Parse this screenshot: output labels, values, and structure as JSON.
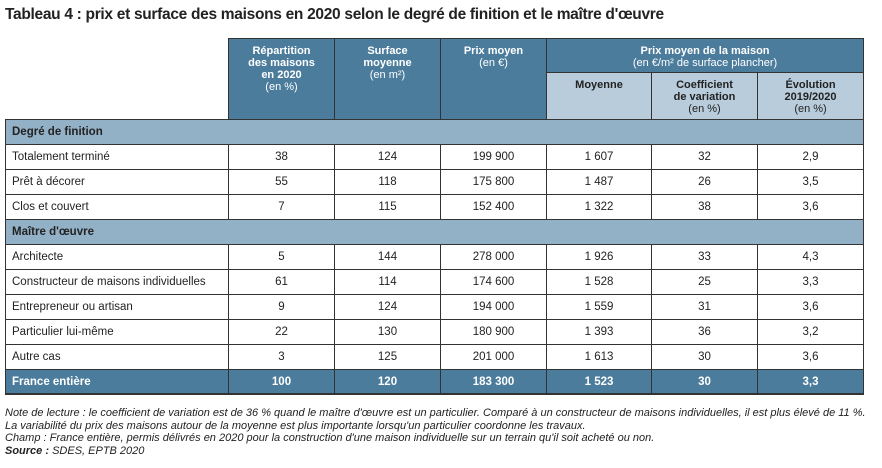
{
  "title": "Tableau 4 : prix et surface des maisons en 2020 selon le degré de finition et le maître d'œuvre",
  "colors": {
    "header": "#4b7c9c",
    "section": "#93b1c6",
    "subheader": "#b8ccdb"
  },
  "headers": {
    "col1": {
      "title": "Répartition des maisons en 2020",
      "unit": "(en %)"
    },
    "col2": {
      "title": "Surface moyenne",
      "unit": "(en m²)"
    },
    "col3": {
      "title": "Prix moyen",
      "unit": "(en €)"
    },
    "group": {
      "title": "Prix moyen de la maison",
      "unit": "(en €/m² de surface plancher)"
    },
    "col4": {
      "title": "Moyenne",
      "unit": ""
    },
    "col5": {
      "title": "Coefficient de variation",
      "unit": "(en %)"
    },
    "col6": {
      "title": "Évolution 2019/2020",
      "unit": "(en %)"
    }
  },
  "sections": [
    {
      "label": "Degré de finition",
      "rows": [
        [
          "Totalement terminé",
          "38",
          "124",
          "199 900",
          "1 607",
          "32",
          "2,9"
        ],
        [
          "Prêt à décorer",
          "55",
          "118",
          "175 800",
          "1 487",
          "26",
          "3,5"
        ],
        [
          "Clos et couvert",
          "7",
          "115",
          "152 400",
          "1 322",
          "38",
          "3,6"
        ]
      ]
    },
    {
      "label": "Maître d'œuvre",
      "rows": [
        [
          "Architecte",
          "5",
          "144",
          "278 000",
          "1 926",
          "33",
          "4,3"
        ],
        [
          "Constructeur de maisons individuelles",
          "61",
          "114",
          "174 600",
          "1 528",
          "25",
          "3,3"
        ],
        [
          "Entrepreneur ou artisan",
          "9",
          "124",
          "194 000",
          "1 559",
          "31",
          "3,6"
        ],
        [
          "Particulier lui-même",
          "22",
          "130",
          "180 900",
          "1 393",
          "36",
          "3,2"
        ],
        [
          "Autre cas",
          "3",
          "125",
          "201 000",
          "1 613",
          "30",
          "3,6"
        ]
      ]
    }
  ],
  "total": [
    "France entière",
    "100",
    "120",
    "183 300",
    "1 523",
    "30",
    "3,3"
  ],
  "notes": {
    "reading": "Note de lecture : le coefficient de variation est de 36 % quand le maître d'œuvre est un particulier. Comparé à un constructeur de maisons individuelles, il est plus élevé de 11 %. La variabilité du prix des maisons autour de la moyenne est plus importante lorsqu'un particulier coordonne les travaux.",
    "scope": "Champ : France entière, permis délivrés en 2020 pour la construction d'une maison individuelle sur un terrain qu'il soit acheté ou non.",
    "source_label": "Source :",
    "source": " SDES, EPTB 2020"
  }
}
